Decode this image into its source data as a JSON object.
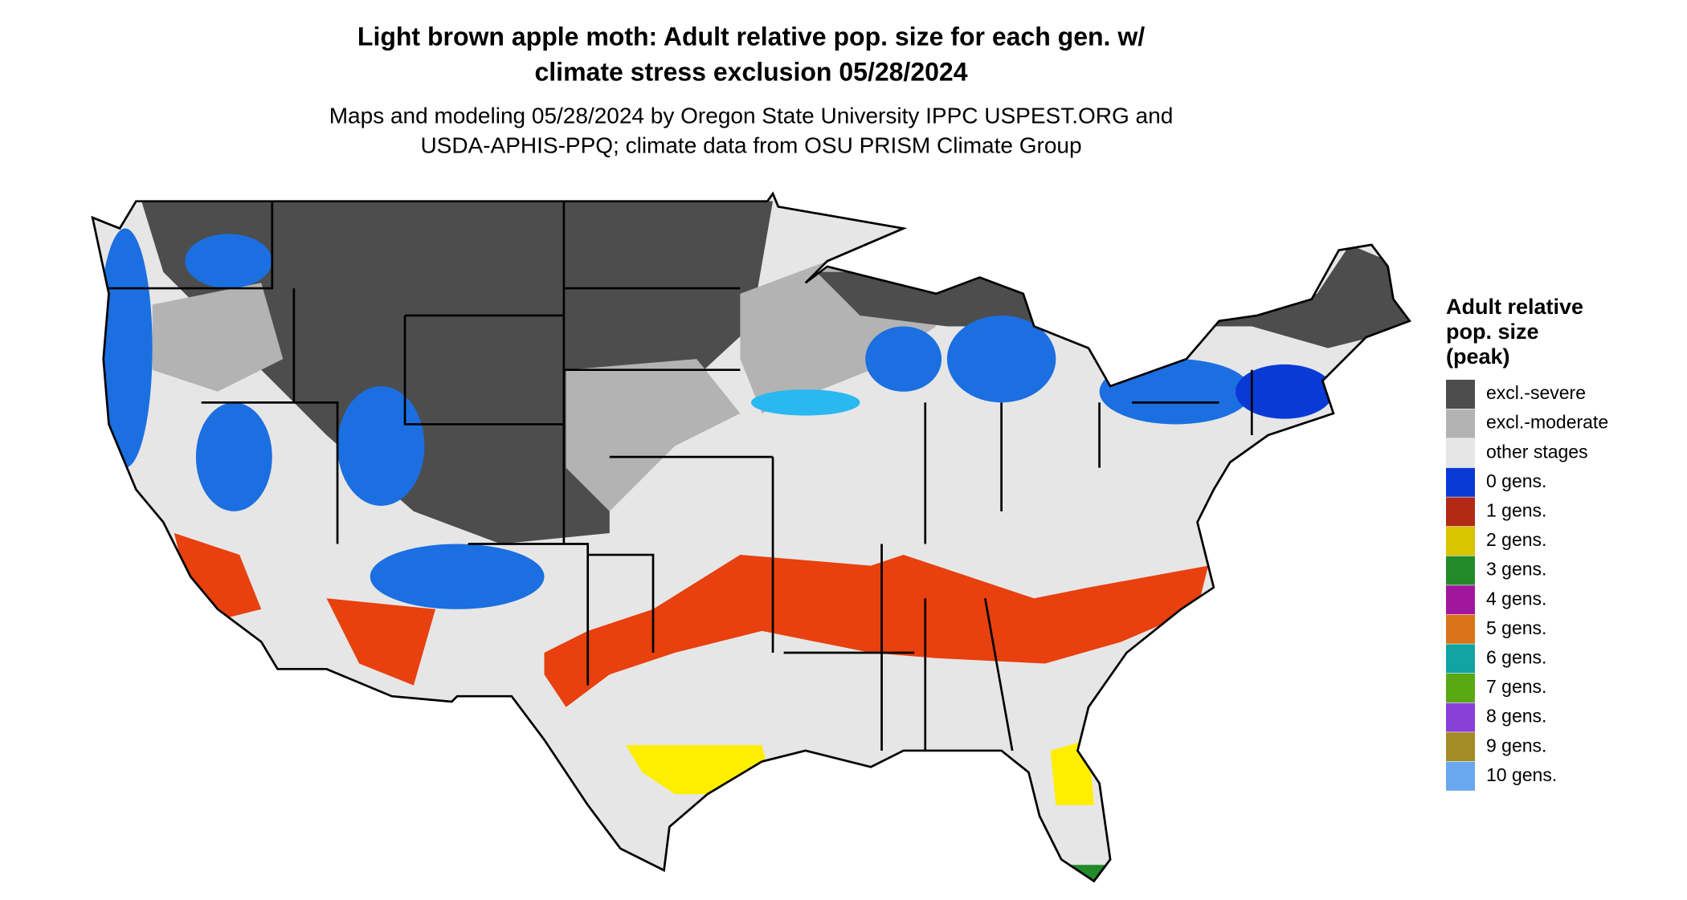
{
  "header": {
    "title": [
      "Light brown apple moth: Adult relative pop. size for each gen. w/",
      "climate stress exclusion 05/28/2024"
    ],
    "subtitle": [
      "Maps and modeling 05/28/2024 by Oregon State University IPPC USPEST.ORG and",
      "USDA-APHIS-PPQ; climate data from OSU PRISM Climate Group"
    ]
  },
  "legend": {
    "title": [
      "Adult relative",
      "pop. size",
      "(peak)"
    ],
    "items": [
      {
        "label": "excl.-severe",
        "color": "#4d4d4d"
      },
      {
        "label": "excl.-moderate",
        "color": "#b3b3b3"
      },
      {
        "label": "other stages",
        "color": "#e6e6e6"
      },
      {
        "label": "0 gens.",
        "color": "#0a3ad6"
      },
      {
        "label": "1 gens.",
        "color": "#b22a14"
      },
      {
        "label": "2 gens.",
        "color": "#d9c400"
      },
      {
        "label": "3 gens.",
        "color": "#238a2a"
      },
      {
        "label": "4 gens.",
        "color": "#a0179e"
      },
      {
        "label": "5 gens.",
        "color": "#d9731a"
      },
      {
        "label": "6 gens.",
        "color": "#12a3a3"
      },
      {
        "label": "7 gens.",
        "color": "#5aa814"
      },
      {
        "label": "8 gens.",
        "color": "#8a3fd9"
      },
      {
        "label": "9 gens.",
        "color": "#a38b26"
      },
      {
        "label": "10 gens.",
        "color": "#6aa8f0"
      }
    ]
  }
}
